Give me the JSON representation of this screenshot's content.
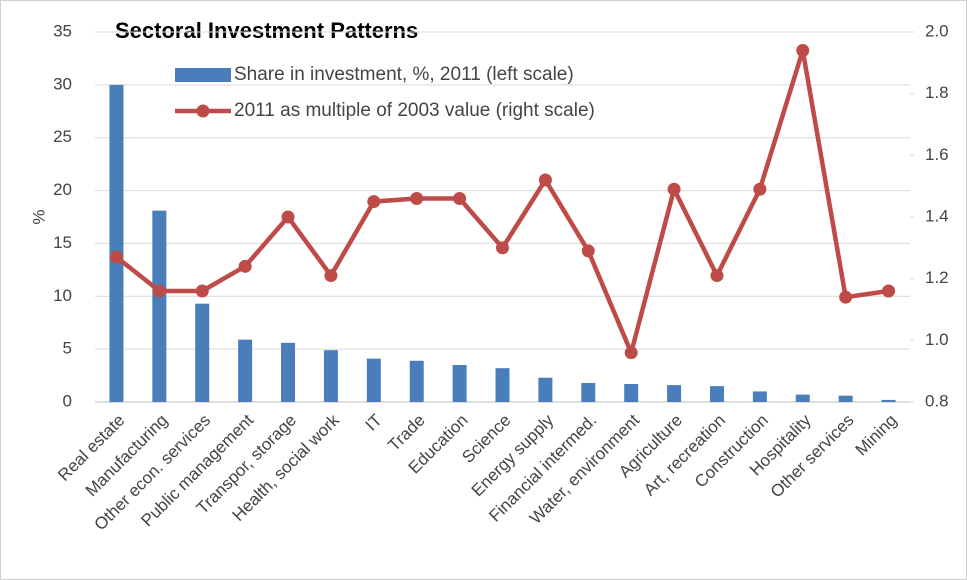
{
  "chart_data": {
    "type": "bar",
    "title": "Sectoral Investment Patterns",
    "ylabel": "%",
    "categories": [
      "Real estate",
      "Manufacturing",
      "Other econ. services",
      "Public management",
      "Transpor, storage",
      "Health, social work",
      "IT",
      "Trade",
      "Education",
      "Science",
      "Energy supply",
      "Financial intermed.",
      "Water, environment",
      "Agriculture",
      "Art, recreation",
      "Construction",
      "Hospitality",
      "Other services",
      "Mining"
    ],
    "series": [
      {
        "name": "Share in investment, %, 2011 (left scale)",
        "type": "bar",
        "color": "#4a7ebb",
        "values": [
          30,
          18.1,
          9.3,
          5.9,
          5.6,
          4.9,
          4.1,
          3.9,
          3.5,
          3.2,
          2.3,
          1.8,
          1.7,
          1.6,
          1.5,
          1.0,
          0.7,
          0.6,
          0.2
        ]
      },
      {
        "name": "2011 as multiple of 2003 value (right scale)",
        "type": "line",
        "axis": "y2",
        "color": "#be4b48",
        "values": [
          1.27,
          1.16,
          1.16,
          1.24,
          1.4,
          1.21,
          1.45,
          1.46,
          1.46,
          1.3,
          1.52,
          1.29,
          0.96,
          1.49,
          1.21,
          1.49,
          1.94,
          1.14,
          1.16
        ]
      }
    ],
    "ylim": [
      0,
      35
    ],
    "yticks": [
      0,
      5,
      10,
      15,
      20,
      25,
      30,
      35
    ],
    "y2lim": [
      0.8,
      2.0
    ],
    "y2ticks": [
      {
        "value": 0.8,
        "label": "0.8"
      },
      {
        "value": 1.0,
        "label": "1.0"
      },
      {
        "value": 1.2,
        "label": "1.2"
      },
      {
        "value": 1.4,
        "label": "1.4"
      },
      {
        "value": 1.6,
        "label": "1.6"
      },
      {
        "value": 1.8,
        "label": "1.8"
      },
      {
        "value": 2.0,
        "label": "2.0"
      }
    ],
    "grid": true,
    "legend": "upper left"
  }
}
